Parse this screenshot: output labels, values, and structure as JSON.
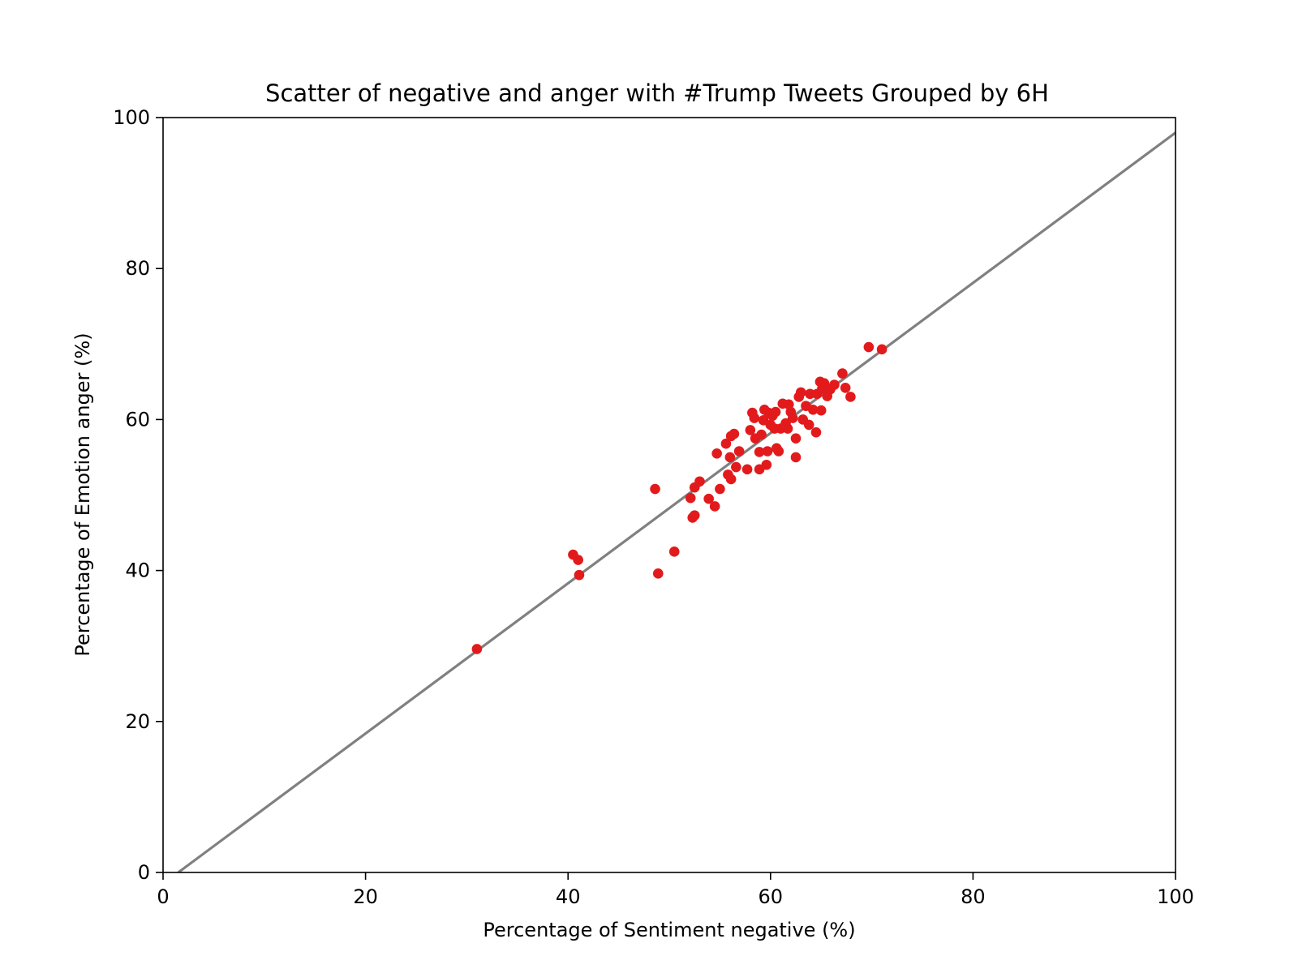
{
  "chart_data": {
    "type": "scatter",
    "title": "Scatter of negative and anger with #Trump Tweets Grouped by 6H",
    "xlabel": "Percentage of Sentiment negative (%)",
    "ylabel": "Percentage of Emotion anger (%)",
    "xlim": [
      0,
      100
    ],
    "ylim": [
      0,
      100
    ],
    "xticks": [
      0,
      20,
      40,
      60,
      80,
      100
    ],
    "yticks": [
      0,
      20,
      40,
      60,
      80,
      100
    ],
    "grid": false,
    "point_color": "#e31a1c",
    "line_color": "#808080",
    "trend_line": {
      "x": [
        1.5,
        100
      ],
      "y": [
        0,
        98
      ]
    },
    "points": [
      [
        31.0,
        29.6
      ],
      [
        40.5,
        42.1
      ],
      [
        41.0,
        41.4
      ],
      [
        41.1,
        39.4
      ],
      [
        48.6,
        50.8
      ],
      [
        48.9,
        39.6
      ],
      [
        50.5,
        42.5
      ],
      [
        52.1,
        49.6
      ],
      [
        52.3,
        47.0
      ],
      [
        52.5,
        47.3
      ],
      [
        52.5,
        51.0
      ],
      [
        53.0,
        51.8
      ],
      [
        53.9,
        49.5
      ],
      [
        54.5,
        48.5
      ],
      [
        54.7,
        55.5
      ],
      [
        55.0,
        50.8
      ],
      [
        55.6,
        56.8
      ],
      [
        55.8,
        52.7
      ],
      [
        56.0,
        55.0
      ],
      [
        56.1,
        52.1
      ],
      [
        56.1,
        57.8
      ],
      [
        56.4,
        58.1
      ],
      [
        56.6,
        53.7
      ],
      [
        56.9,
        55.8
      ],
      [
        57.7,
        53.4
      ],
      [
        58.0,
        58.6
      ],
      [
        58.2,
        60.9
      ],
      [
        58.4,
        60.2
      ],
      [
        58.5,
        57.5
      ],
      [
        58.9,
        55.7
      ],
      [
        58.9,
        53.4
      ],
      [
        59.1,
        58.0
      ],
      [
        59.3,
        59.9
      ],
      [
        59.4,
        61.3
      ],
      [
        59.6,
        54.0
      ],
      [
        59.7,
        55.8
      ],
      [
        59.8,
        60.9
      ],
      [
        60.0,
        59.3
      ],
      [
        60.2,
        60.5
      ],
      [
        60.4,
        58.8
      ],
      [
        60.5,
        61.0
      ],
      [
        60.6,
        56.2
      ],
      [
        60.8,
        55.8
      ],
      [
        61.0,
        58.8
      ],
      [
        61.2,
        62.1
      ],
      [
        61.5,
        59.5
      ],
      [
        61.7,
        58.8
      ],
      [
        61.8,
        62.0
      ],
      [
        62.0,
        61.0
      ],
      [
        62.2,
        60.2
      ],
      [
        62.5,
        55.0
      ],
      [
        62.5,
        57.5
      ],
      [
        62.8,
        63.0
      ],
      [
        63.0,
        63.6
      ],
      [
        63.2,
        60.0
      ],
      [
        63.5,
        61.8
      ],
      [
        63.8,
        59.3
      ],
      [
        63.9,
        63.4
      ],
      [
        64.2,
        61.3
      ],
      [
        64.5,
        58.3
      ],
      [
        64.6,
        63.4
      ],
      [
        64.9,
        65.0
      ],
      [
        65.0,
        61.2
      ],
      [
        65.1,
        64.1
      ],
      [
        65.3,
        64.8
      ],
      [
        65.6,
        63.1
      ],
      [
        65.9,
        64.0
      ],
      [
        66.3,
        64.6
      ],
      [
        67.1,
        66.1
      ],
      [
        67.4,
        64.2
      ],
      [
        67.9,
        63.0
      ],
      [
        69.7,
        69.6
      ],
      [
        71.0,
        69.3
      ]
    ]
  }
}
